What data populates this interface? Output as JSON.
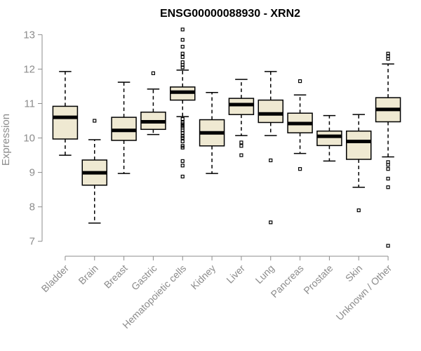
{
  "chart_data": {
    "type": "box",
    "title": "ENSG00000088930 - XRN2",
    "ylabel": "Expression",
    "xlabel": "",
    "ylim": [
      6.75,
      13.15
    ],
    "yticks": [
      7,
      8,
      9,
      10,
      11,
      12,
      13
    ],
    "box_color": "#efe9d2",
    "categories": [
      "Bladder",
      "Brain",
      "Breast",
      "Gastric",
      "Hematopoietic cells",
      "Kidney",
      "Liver",
      "Lung",
      "Pancreas",
      "Prostate",
      "Skin",
      "Unknown / Other"
    ],
    "boxes": [
      {
        "category": "Bladder",
        "q1": 9.97,
        "median": 10.6,
        "q3": 10.92,
        "whisker_low": 9.5,
        "whisker_high": 11.93,
        "outliers": []
      },
      {
        "category": "Brain",
        "q1": 8.63,
        "median": 8.99,
        "q3": 9.36,
        "whisker_low": 7.53,
        "whisker_high": 9.95,
        "outliers": [
          10.5
        ]
      },
      {
        "category": "Breast",
        "q1": 9.93,
        "median": 10.22,
        "q3": 10.6,
        "whisker_low": 8.97,
        "whisker_high": 11.62,
        "outliers": []
      },
      {
        "category": "Gastric",
        "q1": 10.25,
        "median": 10.47,
        "q3": 10.75,
        "whisker_low": 10.1,
        "whisker_high": 11.42,
        "outliers": [
          11.88
        ]
      },
      {
        "category": "Hematopoietic cells",
        "q1": 11.1,
        "median": 11.33,
        "q3": 11.48,
        "whisker_low": 10.62,
        "whisker_high": 11.97,
        "outliers": [
          13.15,
          12.85,
          12.65,
          12.45,
          12.35,
          12.2,
          12.12,
          12.05,
          10.55,
          10.45,
          10.4,
          10.35,
          10.3,
          10.22,
          10.15,
          10.05,
          10.0,
          9.9,
          9.77,
          9.72,
          9.33,
          9.2,
          8.88
        ]
      },
      {
        "category": "Kidney",
        "q1": 9.77,
        "median": 10.15,
        "q3": 10.53,
        "whisker_low": 8.97,
        "whisker_high": 11.32,
        "outliers": []
      },
      {
        "category": "Liver",
        "q1": 10.68,
        "median": 10.97,
        "q3": 11.15,
        "whisker_low": 10.07,
        "whisker_high": 11.7,
        "outliers": [
          9.87,
          9.77,
          9.5
        ]
      },
      {
        "category": "Lung",
        "q1": 10.45,
        "median": 10.7,
        "q3": 11.1,
        "whisker_low": 10.07,
        "whisker_high": 11.93,
        "outliers": [
          9.35,
          7.55
        ]
      },
      {
        "category": "Pancreas",
        "q1": 10.15,
        "median": 10.42,
        "q3": 10.72,
        "whisker_low": 9.55,
        "whisker_high": 11.25,
        "outliers": [
          11.65,
          9.1
        ]
      },
      {
        "category": "Prostate",
        "q1": 9.78,
        "median": 10.05,
        "q3": 10.2,
        "whisker_low": 9.33,
        "whisker_high": 10.65,
        "outliers": []
      },
      {
        "category": "Skin",
        "q1": 9.38,
        "median": 9.9,
        "q3": 10.2,
        "whisker_low": 8.57,
        "whisker_high": 10.68,
        "outliers": [
          7.9
        ]
      },
      {
        "category": "Unknown / Other",
        "q1": 10.47,
        "median": 10.83,
        "q3": 11.17,
        "whisker_low": 9.45,
        "whisker_high": 12.15,
        "outliers": [
          12.45,
          12.38,
          12.3,
          9.3,
          9.22,
          9.1,
          8.82,
          8.57,
          6.87
        ]
      }
    ]
  }
}
